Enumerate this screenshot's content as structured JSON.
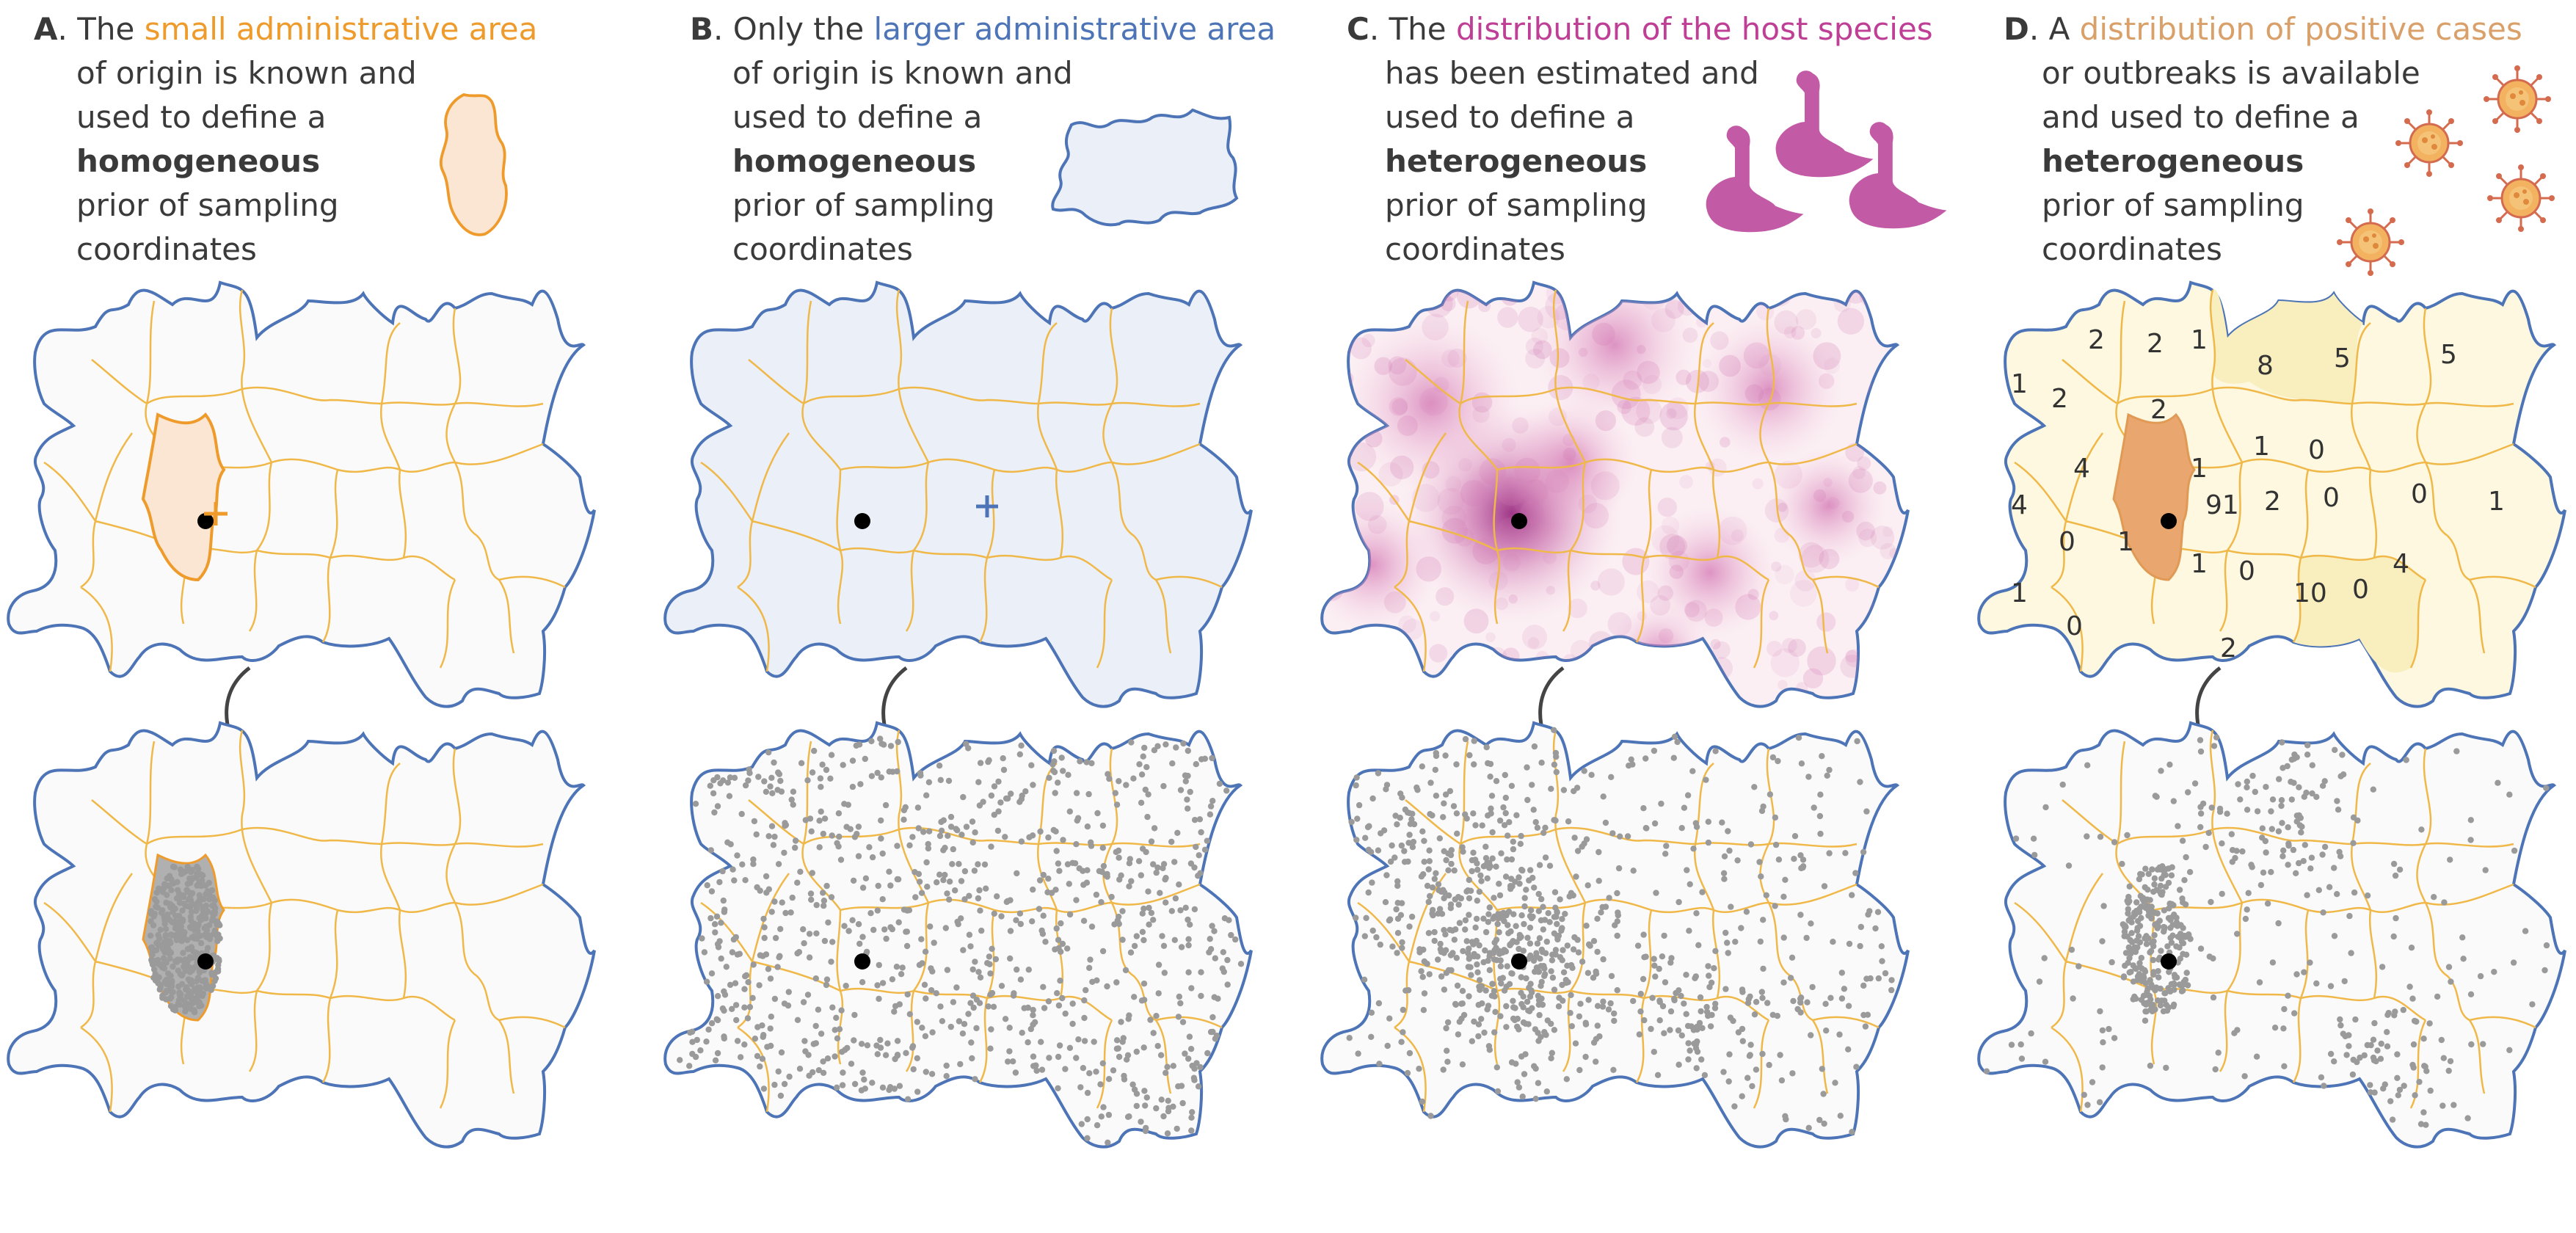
{
  "colors": {
    "orange": "#ee9b2c",
    "orange_fill": "#fbe6d3",
    "blue": "#4c74b6",
    "blue_fill": "#eaeff8",
    "magenta": "#be3f95",
    "tan": "#d9a06a",
    "yellow_fill": "#fdf8df",
    "yellow_fill_2": "#f9efbe",
    "dark_orange": "#e9a66e",
    "dots": "#999999",
    "text": "#3a3a3a",
    "border": "#4c74b6",
    "region_lines": "#f0b848"
  },
  "icons": {
    "A": "small-admin-area-shape-icon",
    "B": "larger-admin-area-shape-icon",
    "C": "goose-icons",
    "D": "virus-icons"
  },
  "panels": [
    {
      "letter": "A",
      "lines": [
        {
          "segments": [
            {
              "t": "A",
              "b": true
            },
            {
              "t": ". The "
            },
            {
              "t": "small administrative area",
              "c": "orange"
            }
          ]
        },
        {
          "segments": [
            {
              "t": "of origin is known and"
            }
          ]
        },
        {
          "segments": [
            {
              "t": "used to define a"
            }
          ]
        },
        {
          "segments": [
            {
              "t": "homogeneous",
              "b": true
            }
          ]
        },
        {
          "segments": [
            {
              "t": "prior of sampling"
            }
          ]
        },
        {
          "segments": [
            {
              "t": "coordinates"
            }
          ]
        }
      ]
    },
    {
      "letter": "B",
      "lines": [
        {
          "segments": [
            {
              "t": "B",
              "b": true
            },
            {
              "t": ". Only the "
            },
            {
              "t": "larger administrative area",
              "c": "blue"
            }
          ]
        },
        {
          "segments": [
            {
              "t": "of origin is known and"
            }
          ]
        },
        {
          "segments": [
            {
              "t": "used to define a"
            }
          ]
        },
        {
          "segments": [
            {
              "t": "homogeneous",
              "b": true
            }
          ]
        },
        {
          "segments": [
            {
              "t": "prior of sampling"
            }
          ]
        },
        {
          "segments": [
            {
              "t": "coordinates"
            }
          ]
        }
      ]
    },
    {
      "letter": "C",
      "lines": [
        {
          "segments": [
            {
              "t": "C",
              "b": true
            },
            {
              "t": ". The "
            },
            {
              "t": "distribution of the host species",
              "c": "magenta"
            }
          ]
        },
        {
          "segments": [
            {
              "t": "has been estimated and"
            }
          ]
        },
        {
          "segments": [
            {
              "t": "used to define a"
            }
          ]
        },
        {
          "segments": [
            {
              "t": "heterogeneous",
              "b": true
            }
          ]
        },
        {
          "segments": [
            {
              "t": "prior of sampling"
            }
          ]
        },
        {
          "segments": [
            {
              "t": "coordinates"
            }
          ]
        }
      ]
    },
    {
      "letter": "D",
      "lines": [
        {
          "segments": [
            {
              "t": "D",
              "b": true
            },
            {
              "t": ". A "
            },
            {
              "t": "distribution of positive cases",
              "c": "tan"
            }
          ]
        },
        {
          "segments": [
            {
              "t": "or outbreaks is available"
            }
          ]
        },
        {
          "segments": [
            {
              "t": "and used to define a"
            }
          ]
        },
        {
          "segments": [
            {
              "t": "heterogeneous",
              "b": true
            }
          ]
        },
        {
          "segments": [
            {
              "t": "prior of sampling"
            }
          ]
        },
        {
          "segments": [
            {
              "t": "coordinates"
            }
          ]
        }
      ]
    }
  ],
  "case_counts": [
    "2",
    "2",
    "1",
    "8",
    "5",
    "5",
    "1",
    "2",
    "2",
    "4",
    "1",
    "1",
    "0",
    "4",
    "91",
    "2",
    "0",
    "0",
    "1",
    "0",
    "1",
    "1",
    "0",
    "10",
    "0",
    "4",
    "1",
    "0",
    "2"
  ]
}
